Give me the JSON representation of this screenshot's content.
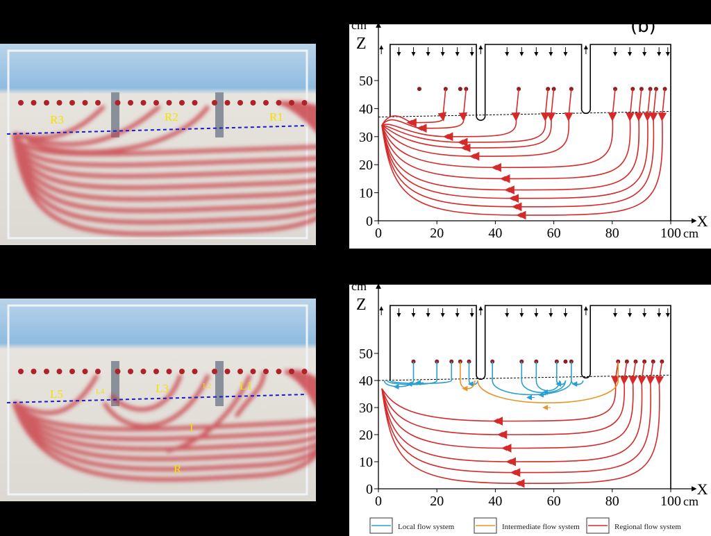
{
  "panels": {
    "top_photo": {
      "labels": [
        "R3",
        "R2",
        "R1"
      ]
    },
    "bottom_photo": {
      "labels": [
        "L5",
        "L4",
        "L3",
        "L2",
        "L1",
        "I",
        "R"
      ]
    },
    "top_diagram": {
      "letter": "(b)"
    },
    "bottom_diagram": {}
  },
  "axes": {
    "y_unit": "cm",
    "y_name": "Z",
    "x_name": "X",
    "x_unit": "cm",
    "y_ticks": [
      "0",
      "10",
      "20",
      "30",
      "40",
      "50"
    ],
    "x_ticks": [
      "0",
      "20",
      "40",
      "60",
      "80",
      "100"
    ]
  },
  "legend": {
    "local": "Local flow system",
    "intermediate": "Intermediate flow system",
    "regional": "Regional flow system"
  },
  "colors": {
    "local": "#2a9fd0",
    "intermediate": "#e8962a",
    "regional": "#d42a2a"
  }
}
